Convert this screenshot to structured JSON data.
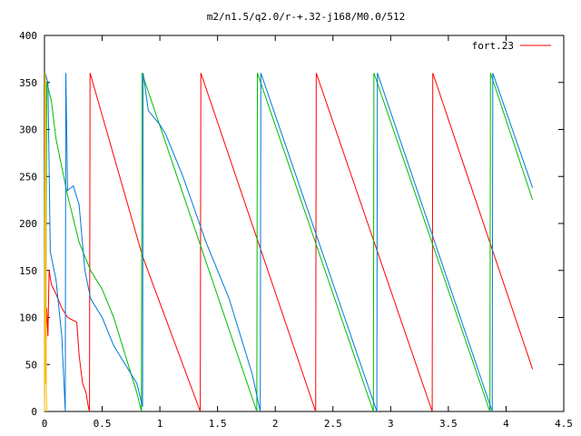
{
  "chart_data": {
    "type": "line",
    "title": "m2/n1.5/q2.0/r-+.32-j168/M0.0/512",
    "xlabel": "",
    "ylabel": "",
    "xlim": [
      0,
      4.5
    ],
    "ylim": [
      0,
      400
    ],
    "x_ticks": [
      0,
      0.5,
      1,
      1.5,
      2,
      2.5,
      3,
      3.5,
      4,
      4.5
    ],
    "x_tick_labels": [
      "0",
      "0.5",
      "1",
      "1.5",
      "2",
      "2.5",
      "3",
      "3.5",
      "4",
      "4.5"
    ],
    "y_ticks": [
      0,
      50,
      100,
      150,
      200,
      250,
      300,
      350,
      400
    ],
    "y_tick_labels": [
      "0",
      "50",
      "100",
      "150",
      "200",
      "250",
      "300",
      "350",
      "400"
    ],
    "grid": false,
    "legend_position": "top-right",
    "series": [
      {
        "name": "fort.23",
        "color": "#ff0000",
        "points": [
          [
            0.0,
            0
          ],
          [
            0.005,
            360
          ],
          [
            0.01,
            60
          ],
          [
            0.02,
            110
          ],
          [
            0.03,
            80
          ],
          [
            0.04,
            150
          ],
          [
            0.06,
            135
          ],
          [
            0.1,
            125
          ],
          [
            0.15,
            110
          ],
          [
            0.2,
            100
          ],
          [
            0.28,
            95
          ],
          [
            0.3,
            60
          ],
          [
            0.33,
            30
          ],
          [
            0.36,
            20
          ],
          [
            0.38,
            5
          ],
          [
            0.39,
            0
          ],
          [
            0.395,
            360
          ],
          [
            0.85,
            165
          ],
          [
            1.35,
            0
          ],
          [
            1.355,
            360
          ],
          [
            2.35,
            0
          ],
          [
            2.355,
            360
          ],
          [
            3.36,
            0
          ],
          [
            3.365,
            360
          ],
          [
            4.23,
            45
          ]
        ]
      },
      {
        "name": "",
        "color": "#00bb00",
        "points": [
          [
            0.0,
            0
          ],
          [
            0.005,
            360
          ],
          [
            0.01,
            40
          ],
          [
            0.02,
            350
          ],
          [
            0.06,
            330
          ],
          [
            0.1,
            290
          ],
          [
            0.2,
            230
          ],
          [
            0.3,
            180
          ],
          [
            0.4,
            150
          ],
          [
            0.5,
            130
          ],
          [
            0.6,
            100
          ],
          [
            0.7,
            60
          ],
          [
            0.8,
            20
          ],
          [
            0.84,
            0
          ],
          [
            0.845,
            360
          ],
          [
            1.84,
            0
          ],
          [
            1.845,
            360
          ],
          [
            2.85,
            0
          ],
          [
            2.855,
            360
          ],
          [
            3.86,
            0
          ],
          [
            3.865,
            360
          ],
          [
            4.23,
            225
          ]
        ]
      },
      {
        "name": "",
        "color": "#0077dd",
        "points": [
          [
            0.0,
            0
          ],
          [
            0.005,
            360
          ],
          [
            0.03,
            350
          ],
          [
            0.05,
            170
          ],
          [
            0.1,
            140
          ],
          [
            0.15,
            80
          ],
          [
            0.18,
            0
          ],
          [
            0.185,
            360
          ],
          [
            0.2,
            235
          ],
          [
            0.25,
            240
          ],
          [
            0.3,
            220
          ],
          [
            0.35,
            150
          ],
          [
            0.4,
            120
          ],
          [
            0.5,
            100
          ],
          [
            0.6,
            70
          ],
          [
            0.65,
            60
          ],
          [
            0.7,
            50
          ],
          [
            0.8,
            30
          ],
          [
            0.85,
            5
          ],
          [
            0.855,
            360
          ],
          [
            0.9,
            320
          ],
          [
            1.0,
            305
          ],
          [
            1.05,
            295
          ],
          [
            1.2,
            250
          ],
          [
            1.4,
            180
          ],
          [
            1.6,
            120
          ],
          [
            1.8,
            40
          ],
          [
            1.87,
            0
          ],
          [
            1.875,
            360
          ],
          [
            2.88,
            0
          ],
          [
            2.885,
            360
          ],
          [
            3.88,
            0
          ],
          [
            3.885,
            360
          ],
          [
            4.23,
            238
          ]
        ]
      },
      {
        "name": "",
        "color": "#ffbb00",
        "points": [
          [
            0.0,
            0
          ],
          [
            0.005,
            360
          ],
          [
            0.008,
            30
          ],
          [
            0.012,
            355
          ],
          [
            0.016,
            20
          ],
          [
            0.02,
            0
          ]
        ]
      }
    ]
  }
}
